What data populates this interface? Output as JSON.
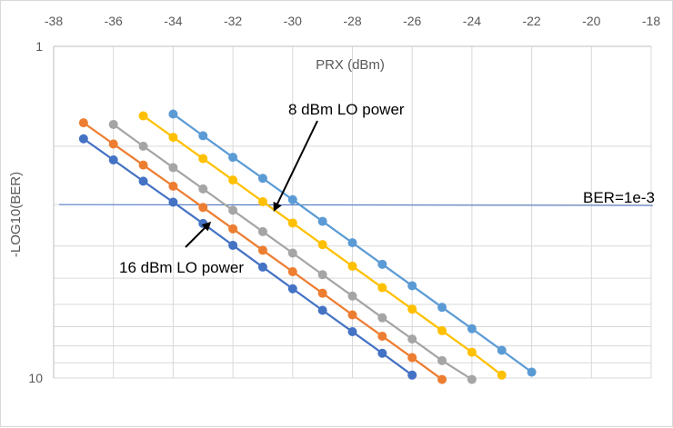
{
  "chart_data": {
    "type": "line",
    "xlabel": "PRX (dBm)",
    "ylabel": "-LOG10(BER)",
    "xlim": [
      -38,
      -18
    ],
    "ylim": [
      1,
      10
    ],
    "y_reversed": true,
    "y_scale": "log",
    "x_tick_labels": [
      "-38",
      "-36",
      "-34",
      "-32",
      "-30",
      "-28",
      "-26",
      "-24",
      "-22",
      "-20",
      "-18"
    ],
    "y_tick_labels": [
      "1",
      "10"
    ],
    "x_axis_position": "top",
    "grid": true,
    "legend": "none",
    "series": [
      {
        "color": "#4472c4",
        "x": [
          -37,
          -36,
          -35,
          -34,
          -33,
          -32,
          -31,
          -30,
          -29,
          -28,
          -27,
          -26
        ],
        "y": [
          1.9,
          2.2,
          2.55,
          2.95,
          3.42,
          3.98,
          4.63,
          5.38,
          6.25,
          7.25,
          8.42,
          9.8
        ]
      },
      {
        "color": "#ed7d31",
        "x": [
          -37,
          -36,
          -35,
          -34,
          -33,
          -32,
          -31,
          -30,
          -29,
          -28,
          -27,
          -26,
          -25
        ],
        "y": [
          1.7,
          1.97,
          2.28,
          2.64,
          3.06,
          3.55,
          4.12,
          4.78,
          5.55,
          6.45,
          7.48,
          8.68,
          10.1
        ]
      },
      {
        "color": "#a5a5a5",
        "x": [
          -36,
          -35,
          -34,
          -33,
          -32,
          -31,
          -30,
          -29,
          -28,
          -27,
          -26,
          -25,
          -24
        ],
        "y": [
          1.72,
          2.0,
          2.32,
          2.69,
          3.12,
          3.62,
          4.2,
          4.88,
          5.66,
          6.58,
          7.63,
          8.86,
          10.1
        ]
      },
      {
        "color": "#ffc000",
        "x": [
          -35,
          -34,
          -33,
          -32,
          -31,
          -30,
          -29,
          -28,
          -27,
          -26,
          -25,
          -24,
          -23
        ],
        "y": [
          1.62,
          1.88,
          2.18,
          2.53,
          2.94,
          3.41,
          3.96,
          4.6,
          5.34,
          6.2,
          7.2,
          8.36,
          9.8
        ]
      },
      {
        "color": "#5b9bd5",
        "x": [
          -34,
          -33,
          -32,
          -31,
          -30,
          -29,
          -28,
          -27,
          -26,
          -25,
          -24,
          -23,
          -22
        ],
        "y": [
          1.6,
          1.86,
          2.16,
          2.5,
          2.9,
          3.37,
          3.91,
          4.54,
          5.27,
          6.12,
          7.1,
          8.25,
          9.6
        ]
      }
    ],
    "reference_line": {
      "label": "BER=1e-3",
      "y": 3.0,
      "color": "#4472c4"
    },
    "annotations": [
      {
        "text": "8 dBm LO power",
        "x": -30.6,
        "y": 3.1
      },
      {
        "text": "16 dBm LO power",
        "x": -33.7,
        "y": 3.1
      }
    ]
  }
}
